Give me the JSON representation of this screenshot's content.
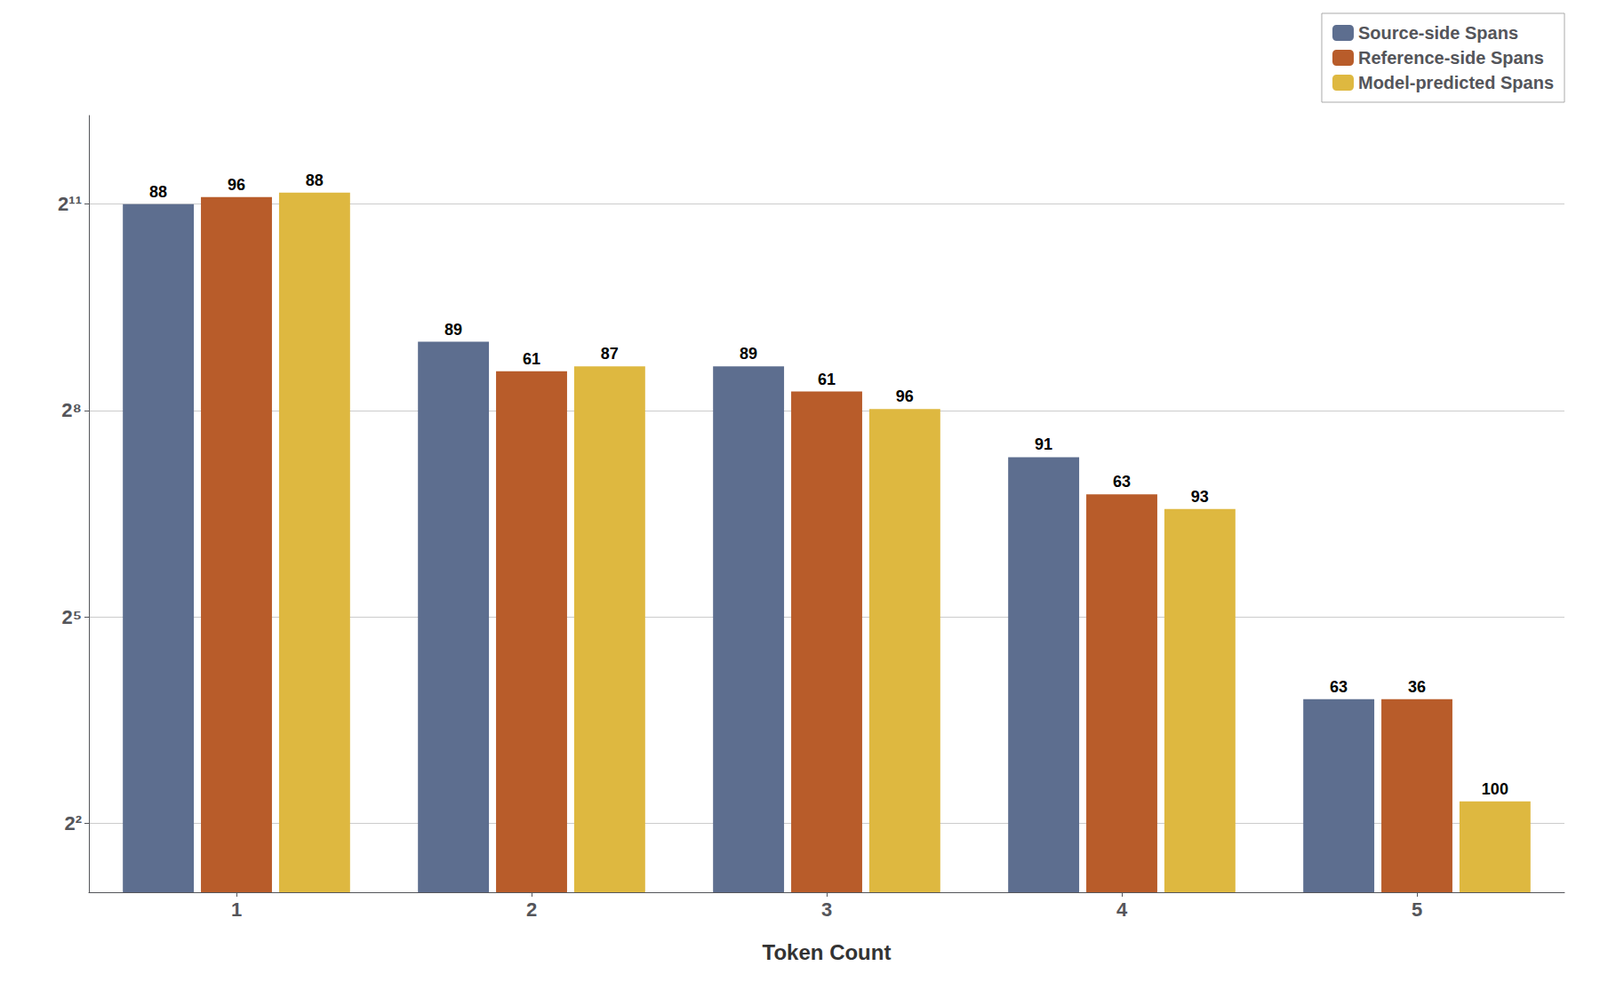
{
  "chart_data": {
    "type": "bar",
    "xlabel": "Token Count",
    "categories": [
      1,
      2,
      3,
      4,
      5
    ],
    "series": [
      {
        "name": "Source-side Spans",
        "color": "#5D6E8F",
        "values": [
          2048,
          512,
          400,
          160,
          14
        ],
        "annotations": [
          88,
          89,
          89,
          91,
          63
        ]
      },
      {
        "name": "Reference-side Spans",
        "color": "#B85C2A",
        "values": [
          2200,
          380,
          310,
          110,
          14
        ],
        "annotations": [
          96,
          61,
          61,
          63,
          36
        ]
      },
      {
        "name": "Model-predicted Spans",
        "color": "#DEB840",
        "values": [
          2300,
          400,
          260,
          95,
          5
        ],
        "annotations": [
          88,
          87,
          96,
          93,
          100
        ]
      }
    ],
    "ylim": [
      2,
      5000
    ],
    "yticks": [
      {
        "value": 4,
        "label": "2²"
      },
      {
        "value": 32,
        "label": "2⁵"
      },
      {
        "value": 256,
        "label": "2⁸"
      },
      {
        "value": 2048,
        "label": "2¹¹"
      }
    ],
    "log": "y",
    "grid": true,
    "legend": "upper right"
  }
}
